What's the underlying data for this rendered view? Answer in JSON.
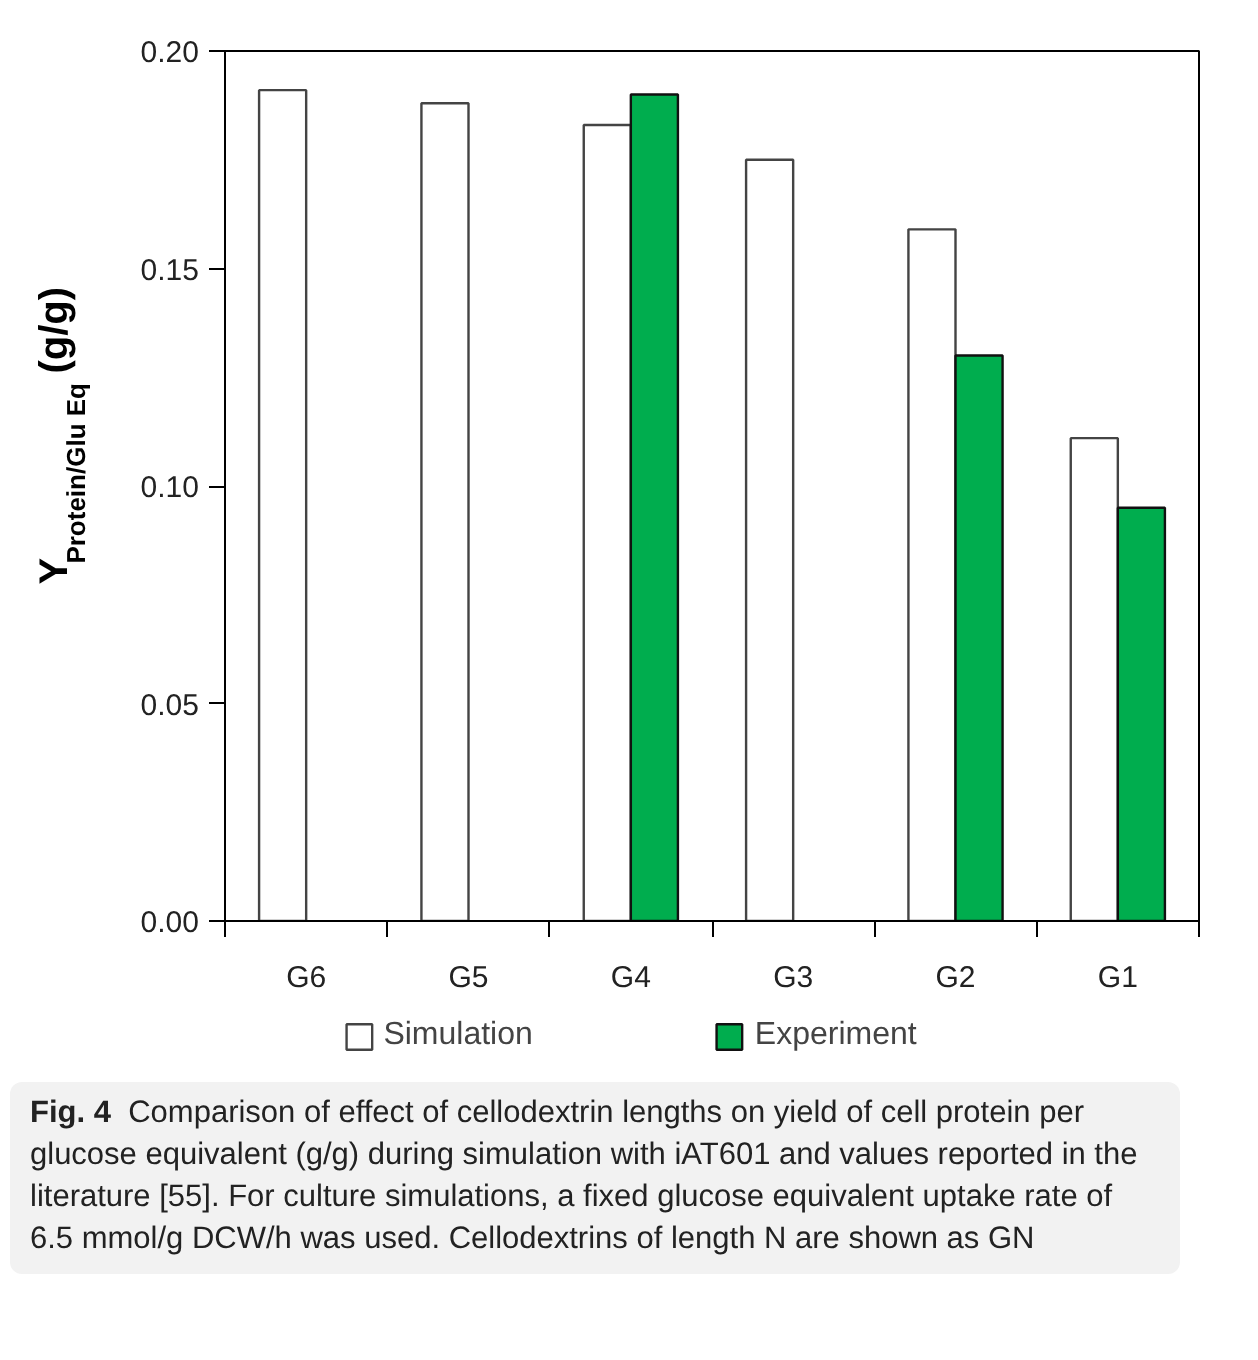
{
  "chart_data": {
    "type": "bar",
    "categories": [
      "G6",
      "G5",
      "G4",
      "G3",
      "G2",
      "G1"
    ],
    "series": [
      {
        "name": "Simulation",
        "color": "#ffffff",
        "values": [
          0.191,
          0.188,
          0.183,
          0.175,
          0.159,
          0.111
        ]
      },
      {
        "name": "Experiment",
        "color": "#00ad4e",
        "values": [
          null,
          null,
          0.19,
          null,
          0.13,
          0.095
        ]
      }
    ],
    "ylabel": "Y$_{Protein/Glu Eq}$ (g/g)",
    "ylim": [
      0,
      0.2
    ],
    "yticks": [
      {
        "value": 0,
        "label": "0.00"
      },
      {
        "value": 0.05,
        "label": "0.05"
      },
      {
        "value": 0.1,
        "label": "0.10"
      },
      {
        "value": 0.15,
        "label": "0.15"
      },
      {
        "value": 0.2,
        "label": "0.20"
      }
    ],
    "legend": "bottom",
    "grid": false,
    "annotations": [
      "Fig. 4",
      "Comparison of effect of cellodextrin lengths on yield of cell protein per glucose equivalent (g/g) during simulation with iAT601 and values reported in the literature [55]. For culture simulations, a fixed glucose equivalent uptake rate of 6.5 mmol/g DCW/h was used. Cellodextrins of length N are shown as GN"
    ]
  }
}
